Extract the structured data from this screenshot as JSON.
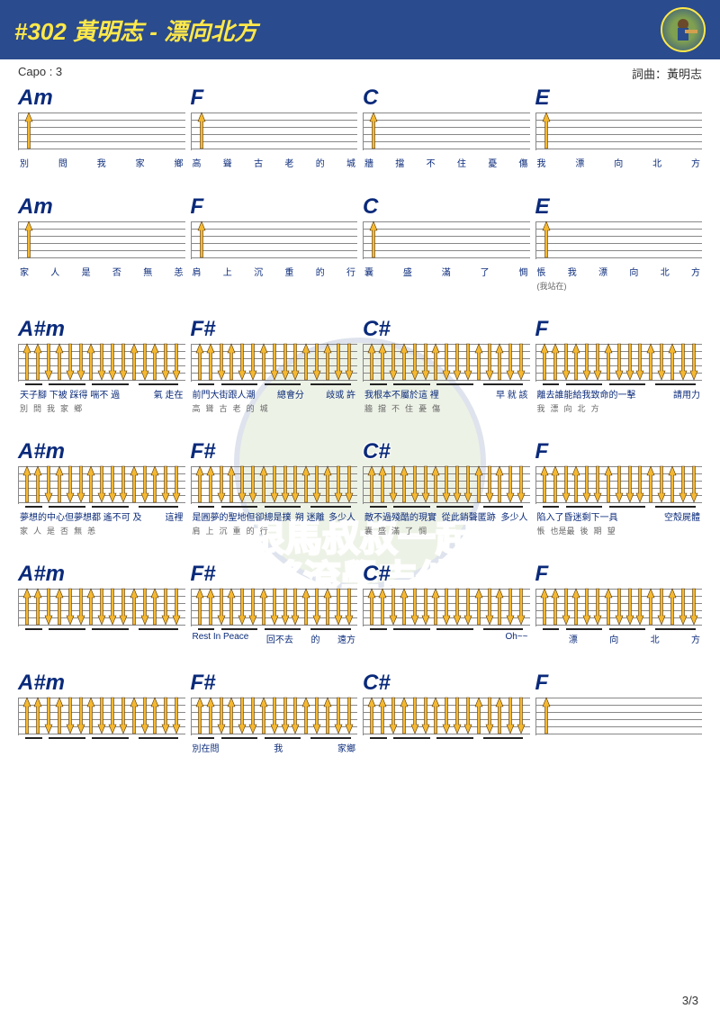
{
  "header": {
    "title": "#302 黃明志 - 漂向北方"
  },
  "meta": {
    "capo": "Capo : 3",
    "credit": "詞曲：黃明志"
  },
  "rows": [
    {
      "pattern": "simple",
      "measures": [
        {
          "chord": "Am",
          "lyrics": [
            "別",
            "問",
            "我",
            "家",
            "鄉"
          ],
          "sub": []
        },
        {
          "chord": "F",
          "lyrics": [
            "高",
            "聳",
            "古",
            "老",
            "的",
            "城"
          ],
          "sub": []
        },
        {
          "chord": "C",
          "lyrics": [
            "牆",
            "擋",
            "不",
            "住",
            "憂",
            "傷"
          ],
          "sub": []
        },
        {
          "chord": "E",
          "lyrics": [
            "我",
            "漂",
            "向",
            "北",
            "方"
          ],
          "sub": []
        }
      ]
    },
    {
      "pattern": "simple",
      "measures": [
        {
          "chord": "Am",
          "lyrics": [
            "家",
            "人",
            "是",
            "否",
            "無",
            "恙"
          ],
          "sub": []
        },
        {
          "chord": "F",
          "lyrics": [
            "肩",
            "上",
            "沉",
            "重",
            "的",
            "行"
          ],
          "sub": []
        },
        {
          "chord": "C",
          "lyrics": [
            "囊",
            "盛",
            "滿",
            "了",
            "惆"
          ],
          "sub": []
        },
        {
          "chord": "E",
          "lyrics": [
            "悵",
            "我",
            "漂",
            "向",
            "北",
            "方"
          ],
          "sub": [
            "(我站在)"
          ]
        }
      ]
    },
    {
      "pattern": "full",
      "measures": [
        {
          "chord": "A#m",
          "lyrics": [
            "天子腳 下被 踩得 喘不 過",
            "氣 走在"
          ],
          "sub": [
            "別",
            "問",
            "我",
            "家",
            "鄉"
          ]
        },
        {
          "chord": "F#",
          "lyrics": [
            "前門大街跟人潮",
            "總會分",
            "歧或 許"
          ],
          "sub": [
            "高",
            "聳",
            "古",
            "老",
            "的",
            "城"
          ]
        },
        {
          "chord": "C#",
          "lyrics": [
            "我根本不屬於這 裡",
            "早 就 該"
          ],
          "sub": [
            "牆",
            "擋",
            "不",
            "住",
            "憂",
            "傷"
          ]
        },
        {
          "chord": "F",
          "lyrics": [
            "離去誰能給我致命的一擊",
            "請用力"
          ],
          "sub": [
            "我",
            "漂",
            "向",
            "北",
            "方"
          ]
        }
      ]
    },
    {
      "pattern": "full",
      "measures": [
        {
          "chord": "A#m",
          "lyrics": [
            "夢想的中心但夢想都 遙不可 及",
            "這裡"
          ],
          "sub": [
            "家",
            "人",
            "是",
            "否",
            "無",
            "恙"
          ]
        },
        {
          "chord": "F#",
          "lyrics": [
            "是圓夢的聖地但卻總是撲",
            "朔 迷離",
            "多少人"
          ],
          "sub": [
            "肩",
            "上",
            "沉",
            "重",
            "的",
            "行"
          ]
        },
        {
          "chord": "C#",
          "lyrics": [
            "敵不過殘酷的現實",
            "從此銷聲匿跡",
            "多少人"
          ],
          "sub": [
            "囊",
            "盛",
            "滿",
            "了",
            "惆"
          ]
        },
        {
          "chord": "F",
          "lyrics": [
            "陷入了昏迷剩下一具",
            "空殼屍體"
          ],
          "sub": [
            "悵",
            "也是最",
            "後",
            "期",
            "望"
          ]
        }
      ]
    },
    {
      "pattern": "full",
      "measures": [
        {
          "chord": "A#m",
          "lyrics": [
            ""
          ],
          "sub": []
        },
        {
          "chord": "F#",
          "lyrics": [
            "Rest In Peace",
            "回不去",
            "的",
            "遠方"
          ],
          "sub": []
        },
        {
          "chord": "C#",
          "lyrics": [
            "",
            "Oh~~"
          ],
          "sub": []
        },
        {
          "chord": "F",
          "lyrics": [
            "",
            "漂",
            "向",
            "北",
            "方"
          ],
          "sub": []
        }
      ]
    },
    {
      "pattern": "full",
      "measures": [
        {
          "chord": "A#m",
          "lyrics": [
            ""
          ],
          "sub": []
        },
        {
          "chord": "F#",
          "lyrics": [
            "別在問",
            "我",
            "家鄉"
          ],
          "sub": []
        },
        {
          "chord": "C#",
          "lyrics": [
            ""
          ],
          "sub": []
        },
        {
          "chord": "F",
          "lyrics": [
            ""
          ],
          "sub": [],
          "pattern": "simple"
        }
      ]
    }
  ],
  "page": "3/3",
  "colors": {
    "header_bg": "#2a4b8d",
    "title": "#ffe84a",
    "chord": "#0a2a7a",
    "arrow_fill": "#f5b830",
    "arrow_stroke": "#5a3a0a"
  }
}
